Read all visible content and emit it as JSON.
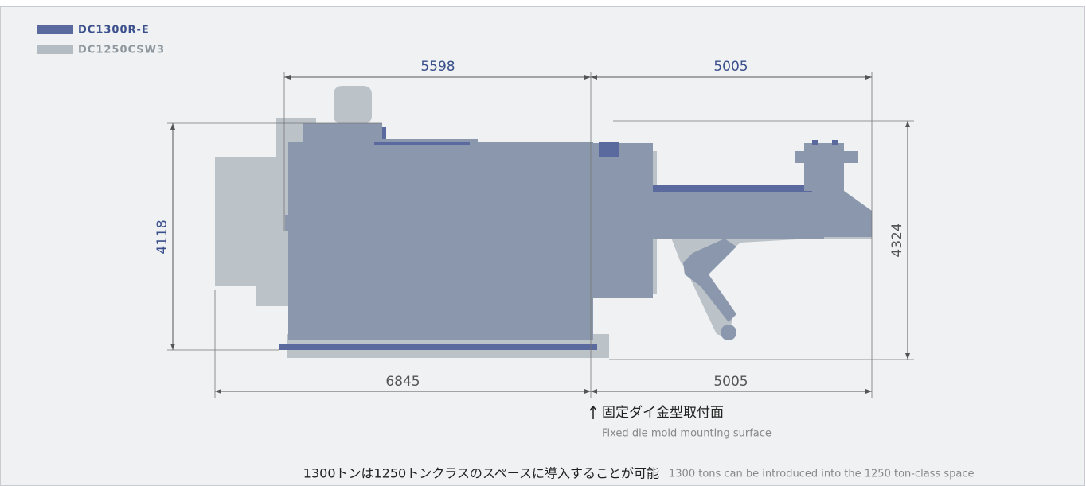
{
  "legend": [
    "DC1300R-E",
    "DC1250CSW3"
  ],
  "dimensions": {
    "top_left": "5598",
    "top_right": "5005",
    "bottom_left": "6845",
    "bottom_right": "5005",
    "left": "4118",
    "right": "4324"
  },
  "annotation": {
    "title": "固定ダイ金型取付面",
    "subtitle": "Fixed die mold mounting surface"
  },
  "footer": {
    "japanese": "1300トンは1250トンクラスのスペースに導入することが可能",
    "english": "1300 tons can be introduced into the 1250 ton-class space"
  }
}
